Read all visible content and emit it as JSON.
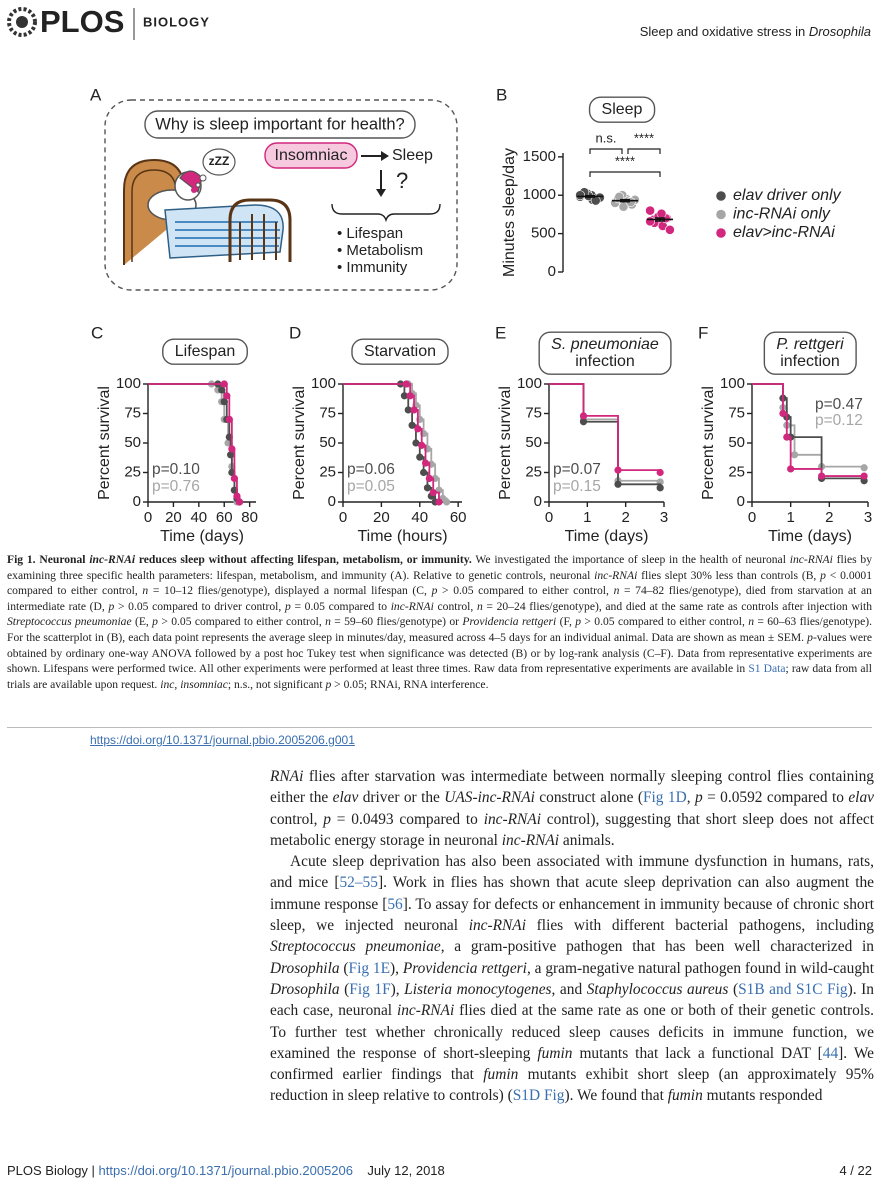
{
  "header": {
    "logo": "PLOS",
    "journal": "BIOLOGY",
    "running_title": [
      {
        "t": "Sleep and oxidative stress in "
      },
      {
        "i": "Drosophila"
      }
    ]
  },
  "figure": {
    "panel_a": {
      "letter": "A",
      "question": "Why is sleep important for health?",
      "insomniac": "Insomniac",
      "zzz": "zZZ",
      "sleep": "Sleep",
      "unknown": "?",
      "outcomes": [
        "• Lifespan",
        "• Metabolism",
        "• Immunity"
      ]
    },
    "charts": [
      {
        "type": "strip",
        "letter": "B",
        "title": "Sleep",
        "ylabel": "Minutes sleep/day",
        "ylim": [
          0,
          1550
        ],
        "yticks": [
          0,
          500,
          1000,
          1500
        ],
        "annotations": [
          "n.s.",
          "****",
          "****"
        ],
        "series": [
          {
            "name": "elav driver only",
            "color": "#4d4d4d",
            "values": [
              980,
              1000,
              960,
              1020,
              940,
              1010,
              990,
              970,
              1040,
              930,
              1000
            ],
            "mean": 985,
            "sem": 10
          },
          {
            "name": "inc-RNAi only",
            "color": "#a6a6a6",
            "values": [
              900,
              950,
              880,
              1000,
              920,
              960,
              850,
              940,
              980,
              910
            ],
            "mean": 929,
            "sem": 14
          },
          {
            "name": "elav>inc-RNAi",
            "color": "#d1277d",
            "values": [
              800,
              750,
              700,
              650,
              600,
              680,
              720,
              550,
              640,
              700,
              660,
              760
            ],
            "mean": 684,
            "sem": 20
          }
        ]
      },
      {
        "type": "line",
        "step": true,
        "letter": "C",
        "title": "Lifespan",
        "ylabel": "Percent survival",
        "xlabel": "Time (days)",
        "xlim": [
          0,
          85
        ],
        "xticks": [
          0,
          20,
          40,
          60,
          80
        ],
        "ylim": [
          0,
          100
        ],
        "yticks": [
          0,
          25,
          50,
          75,
          100
        ],
        "annotations": [
          {
            "text": "p=0.10",
            "color": "#4d4d4d"
          },
          {
            "text": "p=0.76",
            "color": "#a6a6a6"
          }
        ],
        "series": [
          {
            "color": "#a6a6a6",
            "x": [
              0,
              50,
              55,
              58,
              60,
              63,
              66,
              68,
              70
            ],
            "values": [
              100,
              100,
              95,
              85,
              70,
              50,
              30,
              10,
              0
            ]
          },
          {
            "color": "#4d4d4d",
            "x": [
              0,
              55,
              58,
              60,
              62,
              64,
              65,
              66,
              68,
              70,
              72
            ],
            "values": [
              100,
              100,
              95,
              85,
              70,
              55,
              40,
              25,
              10,
              3,
              0
            ]
          },
          {
            "color": "#d1277d",
            "x": [
              0,
              60,
              62,
              64,
              66,
              68,
              70,
              72
            ],
            "values": [
              100,
              100,
              90,
              70,
              45,
              20,
              5,
              0
            ]
          }
        ]
      },
      {
        "type": "line",
        "step": true,
        "letter": "D",
        "title": "Starvation",
        "ylabel": "Percent survival",
        "xlabel": "Time (hours)",
        "xlim": [
          0,
          62
        ],
        "xticks": [
          0,
          20,
          40,
          60
        ],
        "ylim": [
          0,
          100
        ],
        "yticks": [
          0,
          25,
          50,
          75,
          100
        ],
        "annotations": [
          {
            "text": "p=0.06",
            "color": "#4d4d4d"
          },
          {
            "text": "p=0.05",
            "color": "#a6a6a6"
          }
        ],
        "series": [
          {
            "color": "#a6a6a6",
            "x": [
              0,
              34,
              36,
              38,
              40,
              42,
              44,
              46,
              48,
              50,
              52,
              54
            ],
            "values": [
              100,
              100,
              92,
              82,
              70,
              58,
              45,
              32,
              20,
              10,
              3,
              0
            ]
          },
          {
            "color": "#4d4d4d",
            "x": [
              0,
              30,
              32,
              34,
              36,
              38,
              40,
              42,
              44,
              46,
              48
            ],
            "values": [
              100,
              100,
              90,
              78,
              65,
              50,
              38,
              25,
              12,
              5,
              0
            ]
          },
          {
            "color": "#d1277d",
            "x": [
              0,
              33,
              35,
              37,
              39,
              41,
              43,
              45,
              47,
              50
            ],
            "values": [
              100,
              100,
              90,
              78,
              62,
              48,
              33,
              20,
              8,
              0
            ]
          }
        ]
      },
      {
        "type": "line",
        "step": true,
        "letter": "E",
        "title_italic": "S. pneumoniae",
        "title": "infection",
        "ylabel": "Percent survival",
        "xlabel": "Time (days)",
        "xlim": [
          0,
          3
        ],
        "xticks": [
          0,
          1,
          2,
          3
        ],
        "ylim": [
          0,
          100
        ],
        "yticks": [
          0,
          25,
          50,
          75,
          100
        ],
        "annotations": [
          {
            "text": "p=0.07",
            "color": "#4d4d4d"
          },
          {
            "text": "p=0.15",
            "color": "#a6a6a6"
          }
        ],
        "series": [
          {
            "color": "#a6a6a6",
            "x": [
              0,
              0.9,
              1.8,
              2.9
            ],
            "values": [
              100,
              70,
              18,
              17
            ]
          },
          {
            "color": "#4d4d4d",
            "x": [
              0,
              0.9,
              1.8,
              2.9
            ],
            "values": [
              100,
              68,
              15,
              12
            ]
          },
          {
            "color": "#d1277d",
            "x": [
              0,
              0.9,
              1.8,
              2.9
            ],
            "values": [
              100,
              73,
              27,
              25
            ]
          }
        ]
      },
      {
        "type": "line",
        "step": true,
        "letter": "F",
        "title_italic": "P. rettgeri",
        "title": "infection",
        "ylabel": "Percent survival",
        "xlabel": "Time (days)",
        "xlim": [
          0,
          3
        ],
        "xticks": [
          0,
          1,
          2,
          3
        ],
        "ylim": [
          0,
          100
        ],
        "yticks": [
          0,
          25,
          50,
          75,
          100
        ],
        "annotations": [
          {
            "text": "p=0.47",
            "color": "#4d4d4d"
          },
          {
            "text": "p=0.12",
            "color": "#a6a6a6"
          }
        ],
        "series": [
          {
            "color": "#a6a6a6",
            "x": [
              0,
              0.8,
              0.9,
              1.1,
              1.8,
              2.9
            ],
            "values": [
              100,
              80,
              65,
              40,
              30,
              29
            ]
          },
          {
            "color": "#4d4d4d",
            "x": [
              0,
              0.8,
              0.9,
              1,
              1.8,
              2.9
            ],
            "values": [
              100,
              88,
              72,
              55,
              20,
              18
            ]
          },
          {
            "color": "#d1277d",
            "x": [
              0,
              0.8,
              0.9,
              1,
              1.8,
              2.9
            ],
            "values": [
              100,
              75,
              55,
              28,
              22,
              22
            ]
          }
        ]
      }
    ],
    "caption": [
      {
        "b": "Fig 1. Neuronal "
      },
      {
        "bi": "inc-RNAi"
      },
      {
        "b": " reduces sleep without affecting lifespan, metabolism, or immunity."
      },
      {
        "t": " We investigated the importance of sleep in the health of neuronal "
      },
      {
        "i": "inc-RNAi"
      },
      {
        "t": " flies by examining three specific health parameters: lifespan, metabolism, and immunity (A). Relative to genetic controls, neuronal "
      },
      {
        "i": "inc-RNAi"
      },
      {
        "t": " flies slept 30% less than controls (B, "
      },
      {
        "i": "p"
      },
      {
        "t": " < 0.0001 compared to either control, "
      },
      {
        "i": "n"
      },
      {
        "t": " = 10–12 flies/genotype), displayed a normal lifespan (C, "
      },
      {
        "i": "p"
      },
      {
        "t": " > 0.05 compared to either control, "
      },
      {
        "i": "n"
      },
      {
        "t": " = 74–82 flies/genotype), died from starvation at an intermediate rate (D, "
      },
      {
        "i": "p"
      },
      {
        "t": " > 0.05 compared to driver control, "
      },
      {
        "i": "p"
      },
      {
        "t": " = 0.05 compared to "
      },
      {
        "i": "inc-RNAi"
      },
      {
        "t": " control, "
      },
      {
        "i": "n"
      },
      {
        "t": " = 20–24 flies/genotype), and died at the same rate as controls after injection with "
      },
      {
        "i": "Streptococcus pneumoniae"
      },
      {
        "t": " (E, "
      },
      {
        "i": "p"
      },
      {
        "t": " > 0.05 compared to either control, "
      },
      {
        "i": "n"
      },
      {
        "t": " = 59–60 flies/genotype) or "
      },
      {
        "i": "Providencia rettgeri"
      },
      {
        "t": " (F, "
      },
      {
        "i": "p"
      },
      {
        "t": " > 0.05 compared to either control, "
      },
      {
        "i": "n"
      },
      {
        "t": " = 60–63 flies/genotype). For the scatterplot in (B), each data point represents the average sleep in minutes/day, measured across 4–5 days for an individual animal. Data are shown as mean ± SEM. "
      },
      {
        "i": "p"
      },
      {
        "t": "-values were obtained by ordinary one-way ANOVA followed by a post hoc Tukey test when significance was detected (B) or by log-rank analysis (C–F). Data from representative experiments are shown. Lifespans were performed twice. All other experiments were performed at least three times. Raw data from representative experiments are available in "
      },
      {
        "a": "S1 Data"
      },
      {
        "t": "; raw data from all trials are available upon request. "
      },
      {
        "i": "inc"
      },
      {
        "t": ", "
      },
      {
        "i": "insomniac"
      },
      {
        "t": "; n.s., not significant "
      },
      {
        "i": "p"
      },
      {
        "t": " > 0.05; RNAi, RNA interference."
      }
    ],
    "doi": "https://doi.org/10.1371/journal.pbio.2005206.g001"
  },
  "body": {
    "paragraphs": [
      [
        {
          "i": "RNAi"
        },
        {
          "t": " flies after starvation was intermediate between normally sleeping control flies containing either the "
        },
        {
          "i": "elav"
        },
        {
          "t": " driver or the "
        },
        {
          "i": "UAS-inc-RNAi"
        },
        {
          "t": " construct alone ("
        },
        {
          "a": "Fig 1D"
        },
        {
          "t": ", "
        },
        {
          "i": "p"
        },
        {
          "t": " = 0.0592 compared to "
        },
        {
          "i": "elav"
        },
        {
          "t": " control, "
        },
        {
          "i": "p"
        },
        {
          "t": " = 0.0493 compared to "
        },
        {
          "i": "inc-RNAi"
        },
        {
          "t": " control), suggesting that short sleep does not affect metabolic energy storage in neuronal "
        },
        {
          "i": "inc-RNAi"
        },
        {
          "t": " animals."
        }
      ],
      [
        {
          "t": "Acute sleep deprivation has also been associated with immune dysfunction in humans, rats, and mice ["
        },
        {
          "a": "52–55"
        },
        {
          "t": "]. Work in flies has shown that acute sleep deprivation can also augment the immune response ["
        },
        {
          "a": "56"
        },
        {
          "t": "]. To assay for defects or enhancement in immunity because of chronic short sleep, we injected neuronal "
        },
        {
          "i": "inc-RNAi"
        },
        {
          "t": " flies with different bacterial pathogens, including "
        },
        {
          "i": "Streptococcus pneumoniae"
        },
        {
          "t": ", a gram-positive pathogen that has been well characterized in "
        },
        {
          "i": "Drosophila"
        },
        {
          "t": " ("
        },
        {
          "a": "Fig 1E"
        },
        {
          "t": "), "
        },
        {
          "i": "Providencia rettgeri"
        },
        {
          "t": ", a gram-negative natural pathogen found in wild-caught "
        },
        {
          "i": "Drosophila"
        },
        {
          "t": " ("
        },
        {
          "a": "Fig 1F"
        },
        {
          "t": "), "
        },
        {
          "i": "Listeria monocytogenes"
        },
        {
          "t": ", and "
        },
        {
          "i": "Staphylococcus aureus"
        },
        {
          "t": " ("
        },
        {
          "a": "S1B and S1C Fig"
        },
        {
          "t": "). In each case, neuronal "
        },
        {
          "i": "inc-RNAi"
        },
        {
          "t": " flies died at the same rate as one or both of their genetic controls. To further test whether chronically reduced sleep causes deficits in immune function, we examined the response of short-sleeping "
        },
        {
          "i": "fumin"
        },
        {
          "t": " mutants that lack a functional DAT ["
        },
        {
          "a": "44"
        },
        {
          "t": "]. We confirmed earlier findings that "
        },
        {
          "i": "fumin"
        },
        {
          "t": " mutants exhibit short sleep (an approximately 95% reduction in sleep relative to controls) ("
        },
        {
          "a": "S1D Fig"
        },
        {
          "t": "). We found that "
        },
        {
          "i": "fumin"
        },
        {
          "t": " mutants responded"
        }
      ]
    ]
  },
  "footer": {
    "journal": "PLOS Biology | ",
    "doi": "https://doi.org/10.1371/journal.pbio.2005206",
    "date": "July 12, 2018",
    "page": "4 / 22"
  }
}
